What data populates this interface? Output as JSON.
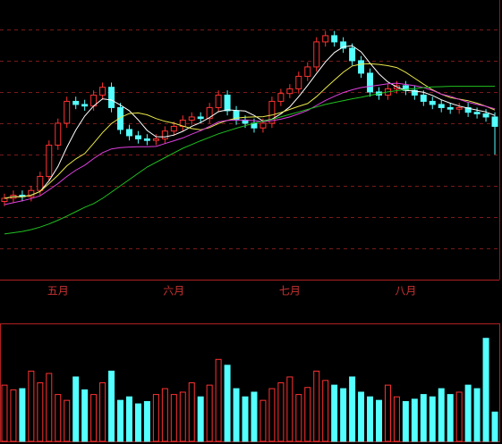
{
  "chart_data": {
    "type": "candlestick",
    "categories": [
      null,
      null,
      null,
      null,
      null,
      null,
      "五月",
      null,
      null,
      null,
      null,
      null,
      null,
      null,
      null,
      null,
      null,
      null,
      null,
      "六月",
      null,
      null,
      null,
      null,
      null,
      null,
      null,
      null,
      null,
      null,
      null,
      null,
      "七月",
      null,
      null,
      null,
      null,
      null,
      null,
      null,
      null,
      null,
      null,
      null,
      null,
      "八月",
      null,
      null,
      null,
      null,
      null,
      null,
      null,
      null,
      null,
      null
    ],
    "open": [
      25,
      26,
      27,
      26.5,
      28.5,
      33,
      43,
      50,
      57,
      56,
      55.5,
      59,
      61.5,
      55,
      48,
      46,
      45,
      44.5,
      45,
      47.5,
      49,
      51,
      52,
      51.5,
      55,
      59,
      54,
      51,
      50,
      48.5,
      50,
      57,
      59.5,
      61,
      65,
      68,
      76,
      78,
      76,
      74,
      70,
      66,
      60,
      59,
      61,
      62,
      60.5,
      59,
      57,
      56,
      55,
      54.5,
      55,
      53.5,
      53,
      52
    ],
    "high": [
      27.5,
      28.5,
      28.5,
      30,
      34.5,
      44.5,
      51.5,
      58.5,
      58.5,
      57.5,
      60.5,
      63,
      63,
      56.5,
      49.5,
      47.5,
      46.5,
      46.5,
      49,
      50.5,
      52.5,
      53.5,
      53.5,
      56.5,
      60.5,
      60.5,
      55.5,
      52.5,
      51.5,
      51.5,
      58.5,
      61,
      62.5,
      66.5,
      69.5,
      77.5,
      79.5,
      79.5,
      77.5,
      75.5,
      71.5,
      67.5,
      61.5,
      62.5,
      63.5,
      63.5,
      62,
      60.5,
      58.5,
      57.5,
      56.5,
      56.5,
      56.5,
      55,
      54.5,
      53.5
    ],
    "low": [
      23.5,
      24.5,
      25,
      25,
      27,
      31.5,
      41.5,
      48.5,
      54.5,
      54,
      54,
      57.5,
      53.5,
      46.5,
      44.5,
      43.5,
      43,
      43,
      43.5,
      46,
      47.5,
      49.5,
      50,
      50,
      53.5,
      52.5,
      49.5,
      48.5,
      47,
      47,
      48.5,
      55.5,
      58,
      59.5,
      63.5,
      66.5,
      74.5,
      74.5,
      72.5,
      68.5,
      64.5,
      58.5,
      57.5,
      57.5,
      59.5,
      59,
      57.5,
      55.5,
      54.5,
      53.5,
      53,
      53,
      52,
      51.5,
      50.5,
      40
    ],
    "close": [
      26,
      27,
      26.5,
      28.5,
      33,
      43,
      50,
      57,
      56,
      55.5,
      59,
      61.5,
      55,
      48,
      46,
      45,
      44.5,
      45,
      47.5,
      49,
      51,
      52,
      51.5,
      55,
      59,
      54,
      51,
      50,
      48.5,
      50,
      57,
      59.5,
      61,
      65,
      68,
      76,
      78,
      76,
      74,
      70,
      66,
      60,
      59,
      61,
      62,
      60.5,
      59,
      57,
      56,
      55,
      54.5,
      55,
      53.5,
      53,
      52,
      49
    ],
    "up_color": "#ff3232",
    "down_color": "#54ffff",
    "series": [
      {
        "color": "#ffffff",
        "values": [
          26,
          26.5,
          26.5,
          27,
          28.2,
          31.6,
          36.2,
          42.3,
          47.8,
          52.3,
          55.5,
          57.8,
          57.4,
          55.8,
          54,
          51.1,
          47.7,
          45.7,
          45.6,
          46.2,
          47.4,
          49,
          50.2,
          51.8,
          53.7,
          54.3,
          54.1,
          53.9,
          52.5,
          50.7,
          51.3,
          53,
          55.2,
          58.5,
          62.1,
          65.9,
          69.6,
          72.6,
          74.4,
          74.8,
          72.8,
          69.2,
          65.8,
          63.2,
          61.6,
          60.5,
          60.3,
          59.9,
          58.9,
          57.5,
          56.4,
          55.5,
          54.8,
          54.2,
          53.6,
          52.5
        ]
      },
      {
        "color": "#e8e84a",
        "values": [
          26,
          26.5,
          26.5,
          27,
          28.2,
          30.7,
          33.4,
          36.4,
          38.6,
          40.3,
          43.6,
          47,
          49.9,
          51.8,
          53.1,
          53.3,
          52.7,
          51.5,
          50.6,
          50,
          49.1,
          48.3,
          47.9,
          48.6,
          49.9,
          50.9,
          51.6,
          51.9,
          52,
          52.1,
          52.6,
          53.4,
          54.4,
          55.4,
          56.3,
          58.5,
          61.2,
          63.8,
          66.3,
          68.3,
          68.9,
          69,
          68.8,
          68.4,
          67.8,
          66.3,
          64.4,
          62.5,
          60.7,
          59.3,
          58.2,
          57.7,
          57.2,
          56.4,
          55.4,
          54.2
        ]
      },
      {
        "color": "#e040e0",
        "values": [
          24,
          24.6,
          25.2,
          25.9,
          26.8,
          28.7,
          30.7,
          33,
          35,
          36.6,
          38.7,
          40.6,
          41.8,
          42.2,
          42.4,
          42.5,
          42.5,
          42.6,
          43.5,
          44.4,
          45.3,
          46.5,
          47.6,
          49,
          50.4,
          50.9,
          51,
          51,
          50.8,
          50.5,
          50.8,
          51.3,
          52,
          53,
          54.1,
          55.7,
          57.3,
          58.6,
          59.8,
          60.7,
          61.4,
          61.8,
          62.2,
          62.6,
          62.8,
          62.4,
          62,
          61.4,
          60.5,
          59.3,
          58.6,
          57.6,
          56.7,
          56,
          55.4,
          54.6
        ]
      },
      {
        "color": "#20c020",
        "values": [
          14.6,
          15,
          15.4,
          16,
          16.8,
          17.8,
          19,
          20.3,
          21.7,
          23.1,
          24.3,
          26,
          28,
          30,
          32,
          34,
          36,
          37.5,
          39,
          40.5,
          42,
          43.2,
          44.4,
          45.5,
          46.6,
          47.5,
          48.4,
          49.2,
          50,
          50.6,
          51.2,
          52,
          52.8,
          53.6,
          54.4,
          55.2,
          56,
          56.6,
          57.2,
          57.8,
          58.3,
          58.9,
          59.5,
          60,
          60.4,
          60.8,
          61.1,
          61.4,
          61.6,
          61.7,
          61.8,
          61.8,
          61.8,
          61.8,
          61.8,
          61.8
        ]
      }
    ],
    "ylim": [
      0,
      89.4
    ],
    "yticks": [
      10,
      20,
      30,
      40,
      50,
      60,
      70,
      80
    ],
    "grid": true,
    "volume": [
      48,
      44,
      45,
      60,
      50,
      58,
      40,
      35,
      55,
      44,
      40,
      50,
      60,
      35,
      38,
      32,
      34,
      40,
      45,
      40,
      42,
      50,
      38,
      48,
      70,
      65,
      45,
      38,
      42,
      35,
      45,
      50,
      55,
      40,
      46,
      60,
      52,
      48,
      45,
      55,
      42,
      38,
      35,
      48,
      38,
      34,
      36,
      40,
      38,
      45,
      40,
      42,
      48,
      45,
      88,
      25
    ],
    "volume_ylim": [
      0,
      100
    ]
  }
}
